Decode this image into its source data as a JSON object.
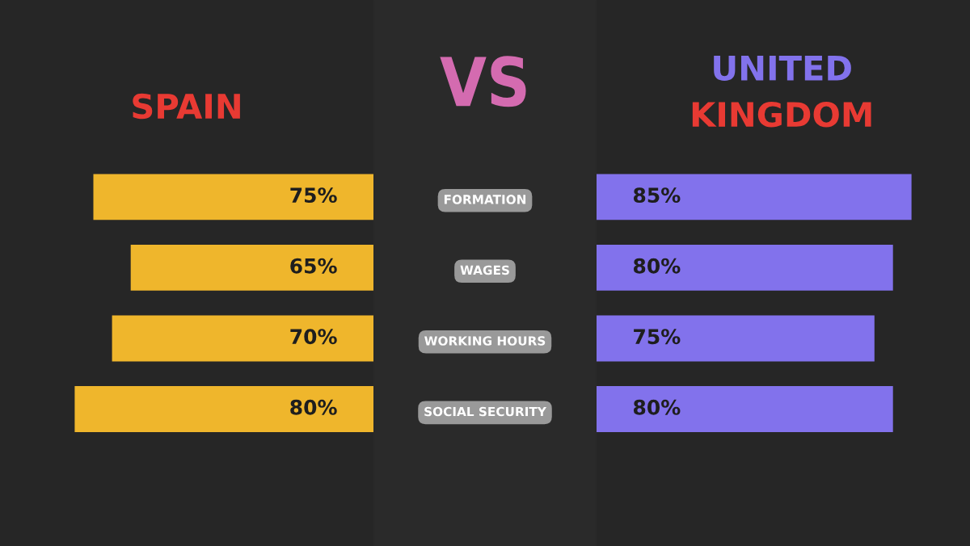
{
  "chart_data": [
    {
      "type": "bar",
      "orientation": "horizontal",
      "title": "SPAIN",
      "categories": [
        "FORMATION",
        "WAGES",
        "WORKING HOURS",
        "SOCIAL SECURITY"
      ],
      "values": [
        75,
        65,
        70,
        80
      ],
      "value_labels": [
        "75%",
        "65%",
        "70%",
        "80%"
      ],
      "color": "#efb62c",
      "xlim": [
        100,
        0
      ],
      "tick_labels": false,
      "annotations": [
        "VS"
      ]
    },
    {
      "type": "bar",
      "orientation": "horizontal",
      "title": "UNITED\nKINGDOM",
      "categories": [
        null,
        null,
        null,
        null
      ],
      "values": [
        85,
        80,
        75,
        80
      ],
      "value_labels": [
        "85%",
        "80%",
        "75%",
        "80%"
      ],
      "color": "#8272ec",
      "xlim": [
        0,
        100
      ],
      "tick_labels": false
    }
  ]
}
